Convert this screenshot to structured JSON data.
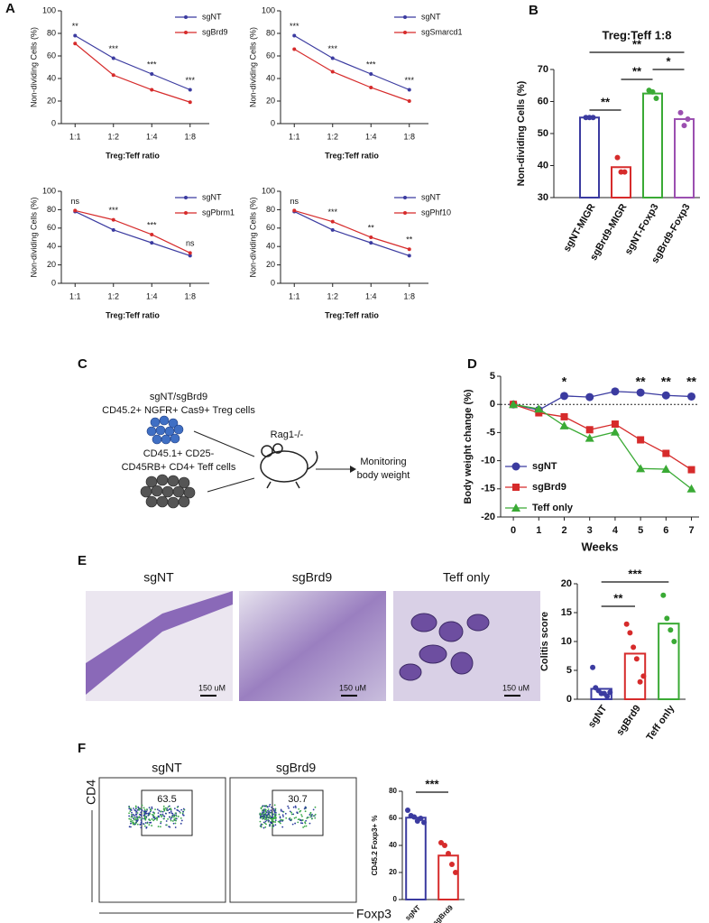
{
  "panel_labels": [
    "A",
    "B",
    "C",
    "D",
    "E",
    "F"
  ],
  "chart_data": [
    {
      "type": "line",
      "categories": [
        "1:1",
        "1:2",
        "1:4",
        "1:8"
      ],
      "xlabel": "Treg:Teff ratio",
      "ylabel": "Non-dividing Cells (%)",
      "ylim": [
        0,
        100
      ],
      "yticks": [
        0,
        20,
        40,
        60,
        80,
        100
      ],
      "legend": "top-right",
      "series": [
        {
          "name": "sgNT",
          "color": "#3b3ba0",
          "values": [
            78,
            58,
            44,
            30
          ]
        },
        {
          "name": "sgBrd9",
          "color": "#d62b2b",
          "values": [
            71,
            43,
            30,
            19
          ]
        }
      ],
      "annotations": [
        "**",
        "***",
        "***",
        "***"
      ]
    },
    {
      "type": "line",
      "categories": [
        "1:1",
        "1:2",
        "1:4",
        "1:8"
      ],
      "xlabel": "Treg:Teff ratio",
      "ylabel": "Non-dividing Cells (%)",
      "ylim": [
        0,
        100
      ],
      "yticks": [
        0,
        20,
        40,
        60,
        80,
        100
      ],
      "legend": "top-right",
      "series": [
        {
          "name": "sgNT",
          "color": "#3b3ba0",
          "values": [
            78,
            58,
            44,
            30
          ]
        },
        {
          "name": "sgSmarcd1",
          "color": "#d62b2b",
          "values": [
            66,
            46,
            32,
            20
          ]
        }
      ],
      "annotations": [
        "***",
        "***",
        "***",
        "***"
      ]
    },
    {
      "type": "line",
      "categories": [
        "1:1",
        "1:2",
        "1:4",
        "1:8"
      ],
      "xlabel": "Treg:Teff ratio",
      "ylabel": "Non-dividing Cells (%)",
      "ylim": [
        0,
        100
      ],
      "yticks": [
        0,
        20,
        40,
        60,
        80,
        100
      ],
      "legend": "top-right",
      "series": [
        {
          "name": "sgNT",
          "color": "#3b3ba0",
          "values": [
            78,
            58,
            44,
            30
          ]
        },
        {
          "name": "sgPbrm1",
          "color": "#d62b2b",
          "values": [
            79,
            69,
            53,
            33
          ]
        }
      ],
      "annotations": [
        "ns",
        "***",
        "***",
        "ns"
      ]
    },
    {
      "type": "line",
      "categories": [
        "1:1",
        "1:2",
        "1:4",
        "1:8"
      ],
      "xlabel": "Treg:Teff ratio",
      "ylabel": "Non-dividing Cells (%)",
      "ylim": [
        0,
        100
      ],
      "yticks": [
        0,
        20,
        40,
        60,
        80,
        100
      ],
      "legend": "top-right",
      "series": [
        {
          "name": "sgNT",
          "color": "#3b3ba0",
          "values": [
            78,
            58,
            44,
            30
          ]
        },
        {
          "name": "sgPhf10",
          "color": "#d62b2b",
          "values": [
            79,
            67,
            50,
            37
          ]
        }
      ],
      "annotations": [
        "ns",
        "***",
        "**",
        "**"
      ]
    },
    {
      "type": "bar",
      "title": "Treg:Teff 1:8",
      "ylabel": "Non-dividing Cells (%)",
      "categories": [
        "sgNT-MIGR",
        "sgBrd9-MIGR",
        "sgNT-Foxp3",
        "sgBrd9-Foxp3"
      ],
      "values": [
        55,
        39.5,
        62.5,
        54.5
      ],
      "colors": [
        "#3b3ba0",
        "#d62b2b",
        "#3aaa35",
        "#9b4fb0"
      ],
      "points": [
        [
          55,
          55,
          55
        ],
        [
          42.5,
          38,
          38
        ],
        [
          63.5,
          63,
          61
        ],
        [
          56.5,
          52.5,
          54.5
        ]
      ],
      "ylim": [
        30,
        70
      ],
      "yticks": [
        30,
        40,
        50,
        60,
        70
      ],
      "comparisons": [
        {
          "label": "**",
          "groups": [
            0,
            1
          ]
        },
        {
          "label": "**",
          "groups": [
            1,
            2
          ]
        },
        {
          "label": "*",
          "groups": [
            2,
            3
          ]
        },
        {
          "label": "**",
          "groups": [
            0,
            3
          ]
        }
      ]
    },
    {
      "type": "scatterline",
      "xlabel": "Weeks",
      "ylabel": "Body weight change (%)",
      "x": [
        0,
        1,
        2,
        3,
        4,
        5,
        6,
        7
      ],
      "xlim": [
        -0.5,
        7.3
      ],
      "xticks": [
        0,
        1,
        2,
        3,
        4,
        5,
        6,
        7
      ],
      "ylim": [
        -20,
        5
      ],
      "yticks": [
        -20,
        -15,
        -10,
        -5,
        0,
        5
      ],
      "legend": "bottom-left",
      "series": [
        {
          "name": "sgNT",
          "color": "#3b3ba0",
          "marker": "circle",
          "values": [
            0,
            -1,
            1.5,
            1.3,
            2.3,
            2.1,
            1.6,
            1.4
          ]
        },
        {
          "name": "sgBrd9",
          "color": "#d62b2b",
          "marker": "square",
          "values": [
            0,
            -1.5,
            -2.2,
            -4.5,
            -3.5,
            -6.3,
            -8.7,
            -11.6
          ]
        },
        {
          "name": "Teff only",
          "color": "#3aaa35",
          "marker": "triangle",
          "values": [
            0,
            -0.8,
            -3.8,
            -6,
            -4.9,
            -11.4,
            -11.5,
            -15
          ]
        }
      ],
      "annotations": [
        {
          "x": 2,
          "label": "*"
        },
        {
          "x": 5,
          "label": "**"
        },
        {
          "x": 6,
          "label": "**"
        },
        {
          "x": 7,
          "label": "**"
        }
      ]
    },
    {
      "type": "bar",
      "ylabel": "Colitis score",
      "categories": [
        "sgNT",
        "sgBrd9",
        "Teff only"
      ],
      "values": [
        1.8,
        7.9,
        13.1
      ],
      "colors": [
        "#3b3ba0",
        "#d62b2b",
        "#3aaa35"
      ],
      "points": [
        [
          5.5,
          2,
          1.5,
          1,
          1,
          0.5,
          1.2
        ],
        [
          13,
          11.5,
          9,
          7,
          3,
          4
        ],
        [
          18,
          14,
          12,
          10
        ]
      ],
      "ylim": [
        0,
        20
      ],
      "yticks": [
        0,
        5,
        10,
        15,
        20
      ],
      "comparisons": [
        {
          "label": "**",
          "groups": [
            0,
            1
          ]
        },
        {
          "label": "***",
          "groups": [
            0,
            2
          ]
        }
      ]
    },
    {
      "type": "bar",
      "ylabel": "CD45.2 Foxp3+ %",
      "categories": [
        "sgNT",
        "sgBrd9"
      ],
      "values": [
        60.5,
        32.5
      ],
      "colors": [
        "#3b3ba0",
        "#d62b2b"
      ],
      "points": [
        [
          66,
          62,
          61,
          58,
          60,
          57
        ],
        [
          42,
          40,
          34,
          26,
          20
        ]
      ],
      "ylim": [
        0,
        80
      ],
      "yticks": [
        0,
        20,
        40,
        60,
        80
      ],
      "comparisons": [
        {
          "label": "***",
          "groups": [
            0,
            1
          ]
        }
      ]
    }
  ],
  "diagram": {
    "treg_line1": "sgNT/sgBrd9",
    "treg_line2": "CD45.2+ NGFR+ Cas9+ Treg cells",
    "teff_line1": "CD45.1+ CD25-",
    "teff_line2": "CD45RB+ CD4+ Teff cells",
    "mouse": "Rag1-/-",
    "readout_line1": "Monitoring",
    "readout_line2": "body weight"
  },
  "histology": {
    "titles": [
      "sgNT",
      "sgBrd9",
      "Teff only"
    ],
    "scale_labels": [
      "150 uM",
      "150 uM",
      "150 uM"
    ]
  },
  "flow": {
    "titles": [
      "sgNT",
      "sgBrd9"
    ],
    "gate_values": [
      "63.5",
      "30.7"
    ],
    "y_axis": "CD4",
    "x_axis": "Foxp3"
  }
}
